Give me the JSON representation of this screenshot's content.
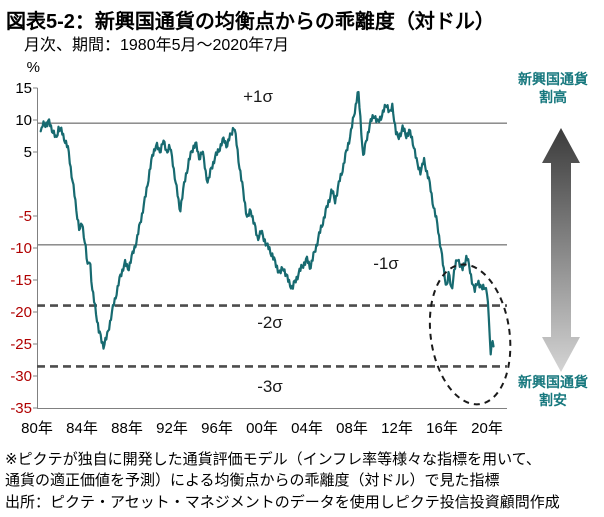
{
  "title": "図表5-2：新興国通貨の均衡点からの乖離度（対ドル）",
  "subtitle": "月次、期間：1980年5月～2020年7月",
  "annotations": {
    "overvalued": "新興国通貨\n割高",
    "undervalued": "新興国通貨\n割安"
  },
  "footer_lines": [
    "※ピクテが独自に開発した通貨評価モデル（インフレ率等様々な指標を用いて、",
    "通貨の適正価値を予測）による均衡点からの乖離度（対ドル）で見た指標",
    "出所：ピクテ・アセット・マネジメントのデータを使用しピクテ投信投資顧問作成"
  ],
  "colors": {
    "series_line": "#176a70",
    "annotation_text": "#17787e",
    "positive_tick": "#000000",
    "negative_tick": "#b00000",
    "sigma_solid": "#7f7f7f",
    "sigma_dashed": "#4d4d4d",
    "axis": "#808080",
    "sigma_label": "#1a1a1a",
    "ellipse": "#1a1a1a",
    "arrow_top": "#3b3b3b",
    "arrow_bottom": "#d4d4d4"
  },
  "chart_data": {
    "type": "line",
    "unit": "%",
    "frequency": "monthly",
    "ylim": [
      -35,
      15
    ],
    "xlim": [
      1980,
      2021.6
    ],
    "yticks": [
      15,
      10,
      5,
      -5,
      -10,
      -15,
      -20,
      -25,
      -30,
      -35
    ],
    "xticks": [
      {
        "year": 1980,
        "label": "80年"
      },
      {
        "year": 1984,
        "label": "84年"
      },
      {
        "year": 1988,
        "label": "88年"
      },
      {
        "year": 1992,
        "label": "92年"
      },
      {
        "year": 1996,
        "label": "96年"
      },
      {
        "year": 2000,
        "label": "00年"
      },
      {
        "year": 2004,
        "label": "04年"
      },
      {
        "year": 2008,
        "label": "08年"
      },
      {
        "year": 2012,
        "label": "12年"
      },
      {
        "year": 2016,
        "label": "16年"
      },
      {
        "year": 2020,
        "label": "20年"
      }
    ],
    "sigma_lines": [
      {
        "label": "+1σ",
        "value": 9.5,
        "style": "solid"
      },
      {
        "label": "-1σ",
        "value": -9.5,
        "style": "solid"
      },
      {
        "label": "-2σ",
        "value": -19,
        "style": "dashed"
      },
      {
        "label": "-3σ",
        "value": -28.5,
        "style": "dashed"
      }
    ],
    "highlight_ellipse": {
      "center_year": 2018.5,
      "center_value": -23.5,
      "radius_years": 3.5,
      "radius_values": 11,
      "rotate_deg": -8
    },
    "series": [
      {
        "name": "新興国通貨の均衡点からの乖離度（対ドル）",
        "anchors": [
          [
            1980.33,
            8.2
          ],
          [
            1980.6,
            9.6
          ],
          [
            1980.9,
            9.2
          ],
          [
            1981.1,
            9.8
          ],
          [
            1981.4,
            8.2
          ],
          [
            1981.7,
            7.0
          ],
          [
            1981.9,
            8.8
          ],
          [
            1982.2,
            8.2
          ],
          [
            1982.5,
            6.8
          ],
          [
            1982.8,
            5.2
          ],
          [
            1983.0,
            2.5
          ],
          [
            1983.2,
            0.0
          ],
          [
            1983.5,
            -4.0
          ],
          [
            1983.8,
            -7.5
          ],
          [
            1984.0,
            -6.0
          ],
          [
            1984.3,
            -9.5
          ],
          [
            1984.5,
            -13.0
          ],
          [
            1984.7,
            -11.5
          ],
          [
            1984.9,
            -16.5
          ],
          [
            1985.2,
            -19.5
          ],
          [
            1985.5,
            -23.0
          ],
          [
            1985.9,
            -25.3
          ],
          [
            1986.2,
            -24.0
          ],
          [
            1986.5,
            -21.5
          ],
          [
            1986.8,
            -19.0
          ],
          [
            1987.0,
            -17.5
          ],
          [
            1987.4,
            -14.5
          ],
          [
            1987.8,
            -12.3
          ],
          [
            1988.1,
            -13.3
          ],
          [
            1988.5,
            -11.0
          ],
          [
            1988.9,
            -8.5
          ],
          [
            1989.3,
            -5.0
          ],
          [
            1989.7,
            -1.5
          ],
          [
            1990.0,
            2.0
          ],
          [
            1990.3,
            4.6
          ],
          [
            1990.6,
            6.3
          ],
          [
            1990.9,
            4.8
          ],
          [
            1991.2,
            6.9
          ],
          [
            1991.5,
            5.0
          ],
          [
            1991.8,
            6.0
          ],
          [
            1992.1,
            3.0
          ],
          [
            1992.4,
            -0.5
          ],
          [
            1992.7,
            -4.3
          ],
          [
            1992.9,
            -2.0
          ],
          [
            1993.2,
            1.0
          ],
          [
            1993.5,
            3.6
          ],
          [
            1993.9,
            5.8
          ],
          [
            1994.1,
            6.5
          ],
          [
            1994.4,
            4.0
          ],
          [
            1994.7,
            5.2
          ],
          [
            1995.0,
            1.8
          ],
          [
            1995.2,
            0.2
          ],
          [
            1995.5,
            2.5
          ],
          [
            1995.8,
            4.0
          ],
          [
            1996.2,
            5.5
          ],
          [
            1996.6,
            7.0
          ],
          [
            1996.9,
            6.0
          ],
          [
            1997.2,
            7.6
          ],
          [
            1997.5,
            9.0
          ],
          [
            1997.7,
            7.0
          ],
          [
            1997.9,
            4.0
          ],
          [
            1998.1,
            1.5
          ],
          [
            1998.4,
            -2.0
          ],
          [
            1998.7,
            -5.5
          ],
          [
            1999.0,
            -4.0
          ],
          [
            1999.3,
            -6.2
          ],
          [
            1999.6,
            -8.5
          ],
          [
            1999.9,
            -7.5
          ],
          [
            2000.2,
            -8.6
          ],
          [
            2000.5,
            -9.8
          ],
          [
            2000.9,
            -11.0
          ],
          [
            2001.2,
            -12.5
          ],
          [
            2001.6,
            -14.0
          ],
          [
            2001.9,
            -13.0
          ],
          [
            2002.3,
            -15.0
          ],
          [
            2002.7,
            -16.3
          ],
          [
            2003.0,
            -15.0
          ],
          [
            2003.3,
            -13.8
          ],
          [
            2003.7,
            -12.5
          ],
          [
            2004.0,
            -11.8
          ],
          [
            2004.3,
            -13.0
          ],
          [
            2004.7,
            -10.5
          ],
          [
            2005.0,
            -8.5
          ],
          [
            2005.4,
            -6.0
          ],
          [
            2005.8,
            -3.5
          ],
          [
            2006.2,
            -1.0
          ],
          [
            2006.5,
            -2.6
          ],
          [
            2006.9,
            0.5
          ],
          [
            2007.2,
            2.6
          ],
          [
            2007.5,
            5.0
          ],
          [
            2007.9,
            8.0
          ],
          [
            2008.2,
            11.0
          ],
          [
            2008.55,
            14.6
          ],
          [
            2008.8,
            9.0
          ],
          [
            2009.0,
            4.2
          ],
          [
            2009.3,
            7.0
          ],
          [
            2009.6,
            9.5
          ],
          [
            2010.0,
            10.8
          ],
          [
            2010.3,
            9.5
          ],
          [
            2010.7,
            11.0
          ],
          [
            2011.1,
            12.5
          ],
          [
            2011.4,
            11.0
          ],
          [
            2011.6,
            12.2
          ],
          [
            2011.9,
            8.2
          ],
          [
            2012.1,
            7.0
          ],
          [
            2012.5,
            8.8
          ],
          [
            2012.8,
            7.5
          ],
          [
            2013.1,
            8.3
          ],
          [
            2013.5,
            6.0
          ],
          [
            2013.8,
            3.0
          ],
          [
            2014.1,
            2.0
          ],
          [
            2014.4,
            3.6
          ],
          [
            2014.8,
            1.0
          ],
          [
            2015.2,
            -3.0
          ],
          [
            2015.6,
            -6.5
          ],
          [
            2015.9,
            -10.0
          ],
          [
            2016.15,
            -13.5
          ],
          [
            2016.4,
            -16.0
          ],
          [
            2016.6,
            -14.0
          ],
          [
            2016.85,
            -16.5
          ],
          [
            2017.1,
            -13.5
          ],
          [
            2017.4,
            -11.5
          ],
          [
            2017.8,
            -13.5
          ],
          [
            2018.2,
            -11.2
          ],
          [
            2018.6,
            -14.5
          ],
          [
            2018.9,
            -16.8
          ],
          [
            2019.2,
            -15.0
          ],
          [
            2019.5,
            -16.5
          ],
          [
            2019.8,
            -15.8
          ],
          [
            2020.0,
            -17.0
          ],
          [
            2020.2,
            -22.0
          ],
          [
            2020.33,
            -26.8
          ],
          [
            2020.45,
            -24.0
          ],
          [
            2020.58,
            -25.5
          ]
        ]
      }
    ]
  }
}
